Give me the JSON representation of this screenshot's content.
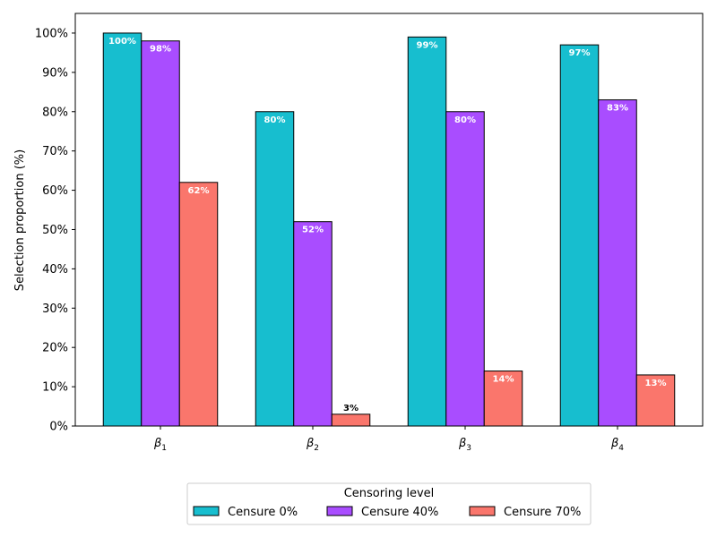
{
  "chart_data": {
    "type": "bar",
    "title": "",
    "xlabel": "",
    "ylabel": "Selection proportion (%)",
    "ylim": [
      0,
      105
    ],
    "yticks": [
      0,
      10,
      20,
      30,
      40,
      50,
      60,
      70,
      80,
      90,
      100
    ],
    "ytick_suffix": "%",
    "categories": [
      {
        "base": "β",
        "sub": "1"
      },
      {
        "base": "β",
        "sub": "2"
      },
      {
        "base": "β",
        "sub": "3"
      },
      {
        "base": "β",
        "sub": "4"
      }
    ],
    "series": [
      {
        "name": "Censure 0%",
        "color": "#17becf",
        "values": [
          100,
          80,
          99,
          97
        ]
      },
      {
        "name": "Censure 40%",
        "color": "#a94dff",
        "values": [
          98,
          52,
          80,
          83
        ]
      },
      {
        "name": "Censure 70%",
        "color": "#fa766c",
        "values": [
          62,
          3,
          14,
          13
        ]
      }
    ],
    "data_labels": [
      [
        "100%",
        "80%",
        "99%",
        "97%"
      ],
      [
        "98%",
        "52%",
        "80%",
        "83%"
      ],
      [
        "62%",
        "3%",
        "14%",
        "13%"
      ]
    ],
    "legend": {
      "title": "Censoring level",
      "position": "bottom-center"
    },
    "grid": false
  }
}
